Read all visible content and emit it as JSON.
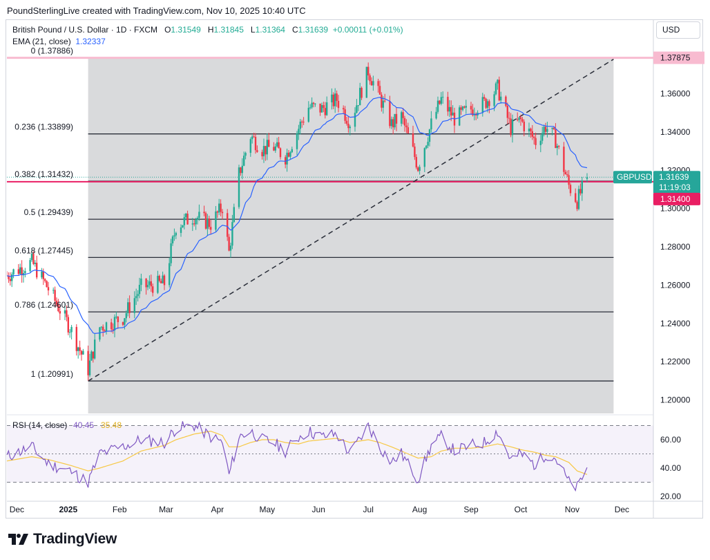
{
  "header": {
    "attribution": "PoundSterlingLive created with TradingView.com, Nov 10, 2025 10:40 UTC"
  },
  "legend": {
    "symbol": "British Pound / U.S. Dollar · 1D · FXCM",
    "o_label": "O",
    "o_value": "1.31549",
    "h_label": "H",
    "h_value": "1.31845",
    "l_label": "L",
    "l_value": "1.31364",
    "c_label": "C",
    "c_value": "1.31639",
    "change": "+0.00011 (+0.01%)",
    "ema_label": "EMA (21, close)",
    "ema_value": "1.32337"
  },
  "currency_button": "USD",
  "price_axis": {
    "ticks": [
      "1.36000",
      "1.34000",
      "1.32000",
      "1.30000",
      "1.28000",
      "1.26000",
      "1.24000",
      "1.22000",
      "1.20000"
    ],
    "top_marker": "1.37875",
    "symbol_tag": "GBPUSD",
    "last_price": "1.31639",
    "countdown": "11:19:03",
    "level_marker": "1.31400"
  },
  "time_axis": {
    "labels": [
      "Dec",
      "2025",
      "Feb",
      "Mar",
      "Apr",
      "May",
      "Jun",
      "Jul",
      "Aug",
      "Sep",
      "Oct",
      "Nov",
      "Dec"
    ]
  },
  "fib_labels": [
    "0 (1.37886)",
    "0.236 (1.33899)",
    "0.382 (1.31432)",
    "0.5 (1.29439)",
    "0.618 (1.27445)",
    "0.786 (1.24601)",
    "1 (1.20991)"
  ],
  "rsi": {
    "label": "RSI (14, close)",
    "value1": "40.45",
    "value2": "35.48",
    "ticks": [
      "60.00",
      "40.00",
      "20.00"
    ]
  },
  "footer": {
    "brand": "TradingView"
  },
  "colors": {
    "up": "#22ab94",
    "down": "#f23645",
    "ema": "#2962ff",
    "fib_zone": "#d7d8da",
    "rsi_line": "#7e57c2",
    "rsi_ma": "#f7c843",
    "level_red": "#e91e63",
    "top_band": "#f8bbd0"
  },
  "chart_data": [
    {
      "type": "candlestick",
      "title": "British Pound / U.S. Dollar · 1D · FXCM",
      "ylim": [
        1.19,
        1.385
      ],
      "ohlc_last": {
        "open": 1.31549,
        "high": 1.31845,
        "low": 1.31364,
        "close": 1.31639
      },
      "close_path": {
        "x": [
          "2024-11-25",
          "2024-12-10",
          "2024-12-20",
          "2025-01-02",
          "2025-01-13",
          "2025-01-20",
          "2025-02-03",
          "2025-02-14",
          "2025-02-28",
          "2025-03-07",
          "2025-03-18",
          "2025-03-28",
          "2025-04-04",
          "2025-04-08",
          "2025-04-14",
          "2025-04-21",
          "2025-04-28",
          "2025-05-05",
          "2025-05-12",
          "2025-05-20",
          "2025-05-26",
          "2025-06-03",
          "2025-06-12",
          "2025-06-20",
          "2025-07-01",
          "2025-07-08",
          "2025-07-15",
          "2025-07-21",
          "2025-07-31",
          "2025-08-08",
          "2025-08-14",
          "2025-08-22",
          "2025-09-01",
          "2025-09-09",
          "2025-09-17",
          "2025-09-25",
          "2025-10-01",
          "2025-10-10",
          "2025-10-16",
          "2025-10-22",
          "2025-10-30",
          "2025-11-04",
          "2025-11-10"
        ],
        "close": [
          1.265,
          1.272,
          1.258,
          1.238,
          1.216,
          1.238,
          1.243,
          1.259,
          1.261,
          1.291,
          1.296,
          1.292,
          1.301,
          1.277,
          1.318,
          1.338,
          1.331,
          1.332,
          1.327,
          1.342,
          1.353,
          1.352,
          1.357,
          1.345,
          1.372,
          1.358,
          1.344,
          1.348,
          1.322,
          1.344,
          1.357,
          1.347,
          1.352,
          1.355,
          1.363,
          1.342,
          1.346,
          1.335,
          1.343,
          1.336,
          1.312,
          1.304,
          1.3164
        ]
      },
      "ema": {
        "name": "EMA (21, close)",
        "last": 1.32337
      },
      "fibonacci": {
        "levels": [
          0,
          0.236,
          0.382,
          0.5,
          0.618,
          0.786,
          1
        ],
        "prices": [
          1.37886,
          1.33899,
          1.31432,
          1.29439,
          1.27445,
          1.24601,
          1.20991
        ]
      },
      "horizontal_levels": [
        1.37875,
        1.314
      ],
      "trendline": {
        "from": {
          "x": "2025-01-13",
          "y": 1.2099
        },
        "to": {
          "x": "2025-11-26",
          "y": 1.378
        },
        "style": "dashed"
      }
    },
    {
      "type": "line",
      "title": "RSI (14, close)",
      "ylim": [
        20,
        72
      ],
      "bands": [
        70,
        50,
        30
      ],
      "series": [
        {
          "name": "RSI (14, close)",
          "x": [
            "2024-11-25",
            "2024-12-10",
            "2024-12-20",
            "2025-01-02",
            "2025-01-13",
            "2025-01-20",
            "2025-02-03",
            "2025-02-14",
            "2025-02-28",
            "2025-03-07",
            "2025-03-18",
            "2025-03-28",
            "2025-04-04",
            "2025-04-08",
            "2025-04-14",
            "2025-04-21",
            "2025-04-28",
            "2025-05-05",
            "2025-05-12",
            "2025-05-20",
            "2025-05-26",
            "2025-06-03",
            "2025-06-12",
            "2025-06-20",
            "2025-07-01",
            "2025-07-08",
            "2025-07-15",
            "2025-07-21",
            "2025-07-31",
            "2025-08-08",
            "2025-08-14",
            "2025-08-22",
            "2025-09-01",
            "2025-09-09",
            "2025-09-17",
            "2025-09-25",
            "2025-10-01",
            "2025-10-10",
            "2025-10-16",
            "2025-10-22",
            "2025-10-30",
            "2025-11-04",
            "2025-11-10"
          ],
          "values": [
            48,
            55,
            43,
            38,
            30,
            50,
            55,
            60,
            58,
            68,
            70,
            62,
            58,
            35,
            62,
            66,
            60,
            58,
            52,
            62,
            66,
            62,
            64,
            50,
            70,
            55,
            44,
            50,
            32,
            56,
            62,
            52,
            56,
            58,
            66,
            46,
            50,
            42,
            50,
            47,
            30,
            26,
            40.45
          ]
        },
        {
          "name": "RSI-based MA",
          "values": [
            45,
            48,
            46,
            42,
            38,
            40,
            45,
            52,
            56,
            60,
            64,
            66,
            63,
            55,
            55,
            58,
            60,
            60,
            58,
            57,
            59,
            60,
            61,
            58,
            60,
            58,
            55,
            52,
            47,
            48,
            52,
            54,
            54,
            55,
            57,
            55,
            53,
            51,
            49,
            48,
            44,
            38,
            35.48
          ]
        }
      ]
    }
  ]
}
